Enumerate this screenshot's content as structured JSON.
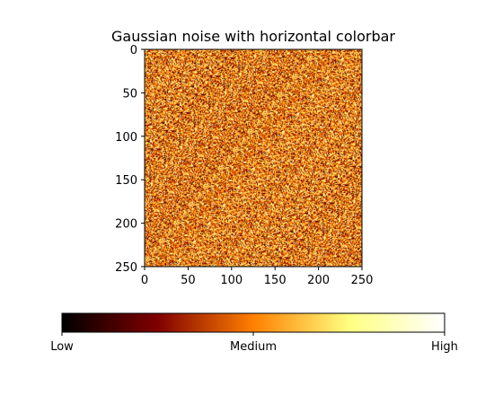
{
  "chart_data": {
    "type": "heatmap",
    "title": "Gaussian noise with horizontal colorbar",
    "xlabel": "",
    "ylabel": "",
    "xlim": [
      0,
      250
    ],
    "ylim": [
      250,
      0
    ],
    "x_ticks": [
      0,
      50,
      100,
      150,
      200,
      250
    ],
    "y_ticks": [
      0,
      50,
      100,
      150,
      200,
      250
    ],
    "colormap": "afmhot",
    "colormap_stops": [
      "#000000",
      "#800000",
      "#ff8000",
      "#ffff80",
      "#ffffff"
    ],
    "colorbar": {
      "orientation": "horizontal",
      "placement": "bottom",
      "tick_labels": [
        "Low",
        "Medium",
        "High"
      ]
    },
    "grid": false
  }
}
